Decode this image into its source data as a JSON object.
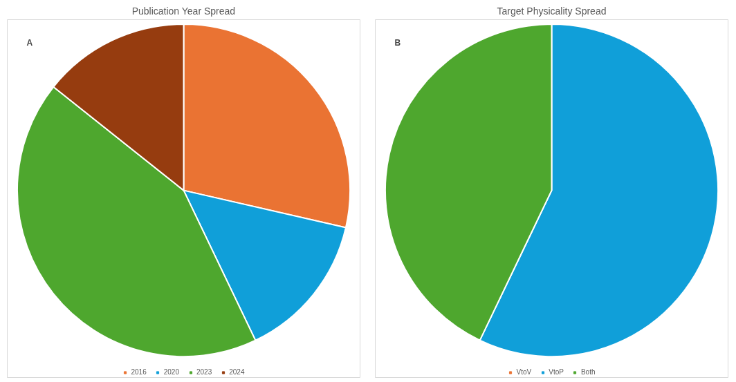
{
  "chart_data": [
    {
      "type": "pie",
      "title": "Publication Year Spread",
      "annotations": [
        "A"
      ],
      "categories": [
        "2016",
        "2020",
        "2023",
        "2024"
      ],
      "values": [
        28.6,
        14.3,
        42.8,
        14.3
      ],
      "colors": [
        "#ea7333",
        "#109fd9",
        "#4ea72e",
        "#963c0f"
      ],
      "legend": "bottom"
    },
    {
      "type": "pie",
      "title": "Target Physicality Spread",
      "annotations": [
        "B"
      ],
      "categories": [
        "VtoV",
        "VtoP",
        "Both"
      ],
      "values": [
        0,
        57.1,
        42.9
      ],
      "colors": [
        "#ea7333",
        "#109fd9",
        "#4ea72e"
      ],
      "legend": "bottom"
    }
  ]
}
